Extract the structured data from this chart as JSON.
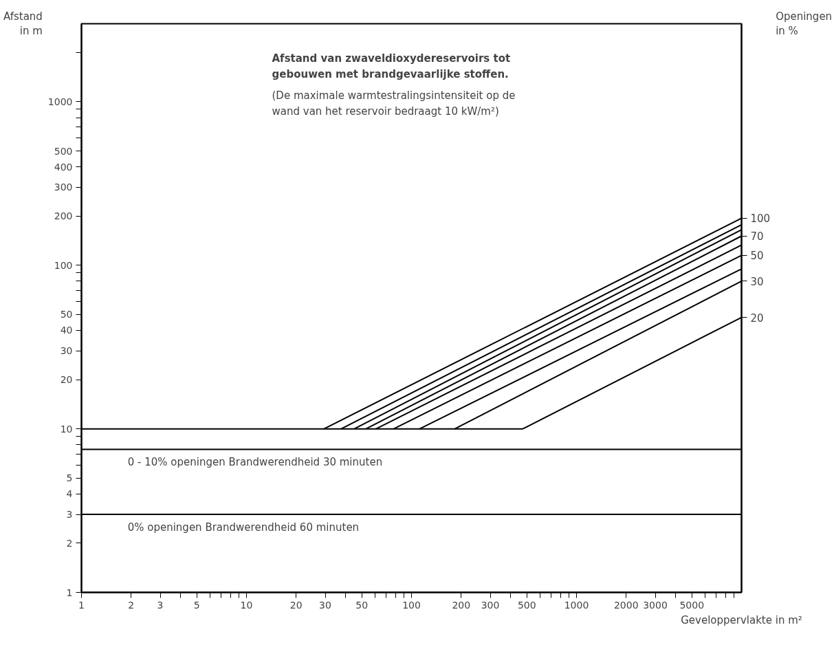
{
  "chart_data": {
    "type": "line",
    "title": "Afstand van zwaveldioxydereservoirs tot\ngebouwen met brandgevaarlijke stoffen.",
    "subtitle": "(De maximale warmtestralingsintensiteit op de\nwand van het reservoir bedraagt 10 kW/m²)",
    "xlabel": "Geveloppervlakte in m²",
    "ylabel": "Afstand\nin m",
    "legend_title": "Openingen\nin %",
    "log": "xy",
    "grid": false,
    "legend": "right",
    "marker": "none",
    "line_style": "solid",
    "xlim": [
      1,
      10000
    ],
    "ylim": [
      1,
      3000
    ],
    "xticks": [
      1,
      2,
      3,
      {
        "value": 4,
        "label": null
      },
      5,
      {
        "value": 6,
        "label": null
      },
      {
        "value": 7,
        "label": null
      },
      {
        "value": 8,
        "label": null
      },
      {
        "value": 9,
        "label": null
      },
      10,
      20,
      30,
      {
        "value": 40,
        "label": null
      },
      50,
      {
        "value": 60,
        "label": null
      },
      {
        "value": 70,
        "label": null
      },
      {
        "value": 80,
        "label": null
      },
      {
        "value": 90,
        "label": null
      },
      100,
      200,
      300,
      {
        "value": 400,
        "label": null
      },
      500,
      {
        "value": 600,
        "label": null
      },
      {
        "value": 700,
        "label": null
      },
      {
        "value": 800,
        "label": null
      },
      {
        "value": 900,
        "label": null
      },
      1000,
      2000,
      3000,
      {
        "value": 4000,
        "label": null
      },
      5000,
      {
        "value": 6000,
        "label": null
      },
      {
        "value": 7000,
        "label": null
      },
      {
        "value": 8000,
        "label": null
      },
      {
        "value": 9000,
        "label": null
      }
    ],
    "yticks": [
      1,
      2,
      3,
      4,
      5,
      {
        "value": 6,
        "label": null
      },
      {
        "value": 7,
        "label": null
      },
      {
        "value": 8,
        "label": null
      },
      {
        "value": 9,
        "label": null
      },
      10,
      20,
      30,
      40,
      50,
      {
        "value": 60,
        "label": null
      },
      {
        "value": 70,
        "label": null
      },
      {
        "value": 80,
        "label": null
      },
      {
        "value": 90,
        "label": null
      },
      100,
      200,
      300,
      400,
      500,
      {
        "value": 600,
        "label": null
      },
      {
        "value": 700,
        "label": null
      },
      {
        "value": 800,
        "label": null
      },
      {
        "value": 900,
        "label": null
      },
      1000,
      {
        "value": 2000,
        "label": null
      }
    ],
    "ref_lines": [
      {
        "axis": "y",
        "value": 7.5,
        "label": "0 - 10% openingen  Brandwerendheid  30 minuten"
      },
      {
        "axis": "y",
        "value": 3,
        "label": "0% openingen  Brandwerendheid  60 minuten"
      }
    ],
    "series": [
      {
        "name": "100",
        "color": "#000000",
        "x": [
          29.5,
          10000
        ],
        "values": [
          10,
          194
        ]
      },
      {
        "color": "#000000",
        "x": [
          37.5,
          10000
        ],
        "values": [
          10,
          177
        ]
      },
      {
        "color": "#000000",
        "x": [
          45,
          10000
        ],
        "values": [
          10,
          165
        ]
      },
      {
        "name": "70",
        "color": "#000000",
        "x": [
          53,
          10000
        ],
        "values": [
          10,
          151
        ]
      },
      {
        "color": "#000000",
        "x": [
          61,
          10000
        ],
        "values": [
          10,
          133
        ]
      },
      {
        "name": "50",
        "color": "#000000",
        "x": [
          78,
          10000
        ],
        "values": [
          10,
          115
        ]
      },
      {
        "color": "#000000",
        "x": [
          112,
          10000
        ],
        "values": [
          10,
          95
        ]
      },
      {
        "name": "30",
        "color": "#000000",
        "x": [
          183,
          10000
        ],
        "values": [
          10,
          80
        ]
      },
      {
        "name": "20",
        "color": "#000000",
        "x": [
          1,
          472,
          10000
        ],
        "values": [
          10,
          10,
          48
        ]
      }
    ]
  }
}
